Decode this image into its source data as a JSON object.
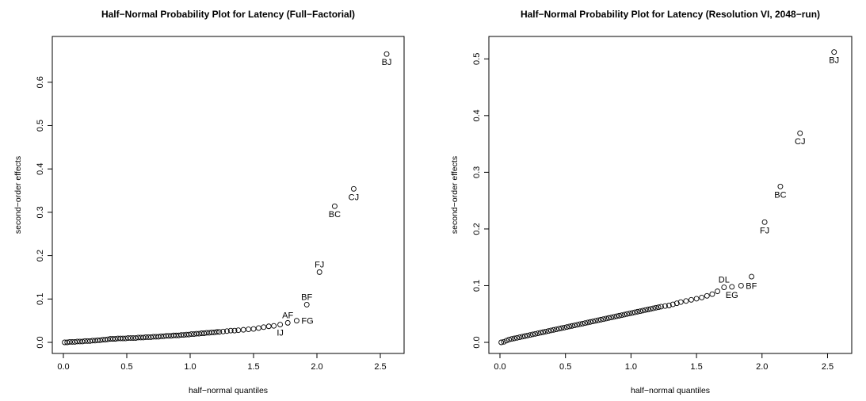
{
  "chart_data": [
    {
      "type": "scatter",
      "title": "Half−Normal Probability Plot for Latency (Full−Factorial)",
      "xlabel": "half−normal quantiles",
      "ylabel": "second−order effects",
      "xlim": [
        0,
        2.6
      ],
      "ylim": [
        0,
        0.68
      ],
      "xticks": [
        0.0,
        0.5,
        1.0,
        1.5,
        2.0,
        2.5
      ],
      "xtick_labels": [
        "0.0",
        "0.5",
        "1.0",
        "1.5",
        "2.0",
        "2.5"
      ],
      "yticks": [
        0.0,
        0.1,
        0.2,
        0.3,
        0.4,
        0.5,
        0.6
      ],
      "ytick_labels": [
        "0.0",
        "0.1",
        "0.2",
        "0.3",
        "0.4",
        "0.5",
        "0.6"
      ],
      "grid": false,
      "series": [
        {
          "points": [
            [
              0.01,
              0.0
            ],
            [
              0.03,
              0.0
            ],
            [
              0.05,
              0.001
            ],
            [
              0.07,
              0.001
            ],
            [
              0.09,
              0.001
            ],
            [
              0.11,
              0.002
            ],
            [
              0.13,
              0.002
            ],
            [
              0.15,
              0.002
            ],
            [
              0.17,
              0.003
            ],
            [
              0.19,
              0.003
            ],
            [
              0.21,
              0.003
            ],
            [
              0.23,
              0.004
            ],
            [
              0.25,
              0.004
            ],
            [
              0.27,
              0.005
            ],
            [
              0.29,
              0.005
            ],
            [
              0.31,
              0.006
            ],
            [
              0.33,
              0.006
            ],
            [
              0.35,
              0.007
            ],
            [
              0.37,
              0.008
            ],
            [
              0.39,
              0.008
            ],
            [
              0.41,
              0.008
            ],
            [
              0.43,
              0.009
            ],
            [
              0.45,
              0.009
            ],
            [
              0.47,
              0.009
            ],
            [
              0.49,
              0.009
            ],
            [
              0.51,
              0.01
            ],
            [
              0.53,
              0.01
            ],
            [
              0.55,
              0.01
            ],
            [
              0.57,
              0.01
            ],
            [
              0.59,
              0.011
            ],
            [
              0.61,
              0.011
            ],
            [
              0.63,
              0.011
            ],
            [
              0.65,
              0.012
            ],
            [
              0.67,
              0.012
            ],
            [
              0.69,
              0.012
            ],
            [
              0.71,
              0.013
            ],
            [
              0.73,
              0.013
            ],
            [
              0.75,
              0.013
            ],
            [
              0.77,
              0.014
            ],
            [
              0.79,
              0.014
            ],
            [
              0.81,
              0.015
            ],
            [
              0.83,
              0.015
            ],
            [
              0.85,
              0.015
            ],
            [
              0.87,
              0.016
            ],
            [
              0.89,
              0.016
            ],
            [
              0.91,
              0.016
            ],
            [
              0.93,
              0.017
            ],
            [
              0.95,
              0.017
            ],
            [
              0.97,
              0.018
            ],
            [
              0.99,
              0.018
            ],
            [
              1.01,
              0.019
            ],
            [
              1.03,
              0.019
            ],
            [
              1.05,
              0.02
            ],
            [
              1.07,
              0.02
            ],
            [
              1.09,
              0.021
            ],
            [
              1.11,
              0.021
            ],
            [
              1.13,
              0.022
            ],
            [
              1.15,
              0.022
            ],
            [
              1.17,
              0.023
            ],
            [
              1.19,
              0.023
            ],
            [
              1.21,
              0.024
            ],
            [
              1.23,
              0.024
            ],
            [
              1.26,
              0.025
            ],
            [
              1.29,
              0.026
            ],
            [
              1.32,
              0.027
            ],
            [
              1.35,
              0.027
            ],
            [
              1.38,
              0.028
            ],
            [
              1.42,
              0.029
            ],
            [
              1.46,
              0.03
            ],
            [
              1.5,
              0.031
            ],
            [
              1.54,
              0.033
            ],
            [
              1.58,
              0.035
            ],
            [
              1.62,
              0.037
            ],
            [
              1.66,
              0.038
            ],
            [
              1.71,
              0.041
            ],
            [
              1.77,
              0.045
            ],
            [
              1.84,
              0.05
            ],
            [
              1.92,
              0.087
            ],
            [
              2.02,
              0.162
            ],
            [
              2.14,
              0.314
            ],
            [
              2.29,
              0.354
            ],
            [
              2.55,
              0.665
            ]
          ],
          "labels": [
            {
              "text": "IJ",
              "x": 1.71,
              "y": 0.041,
              "pos": "below"
            },
            {
              "text": "AF",
              "x": 1.77,
              "y": 0.045,
              "pos": "above"
            },
            {
              "text": "FG",
              "x": 1.84,
              "y": 0.05,
              "pos": "right"
            },
            {
              "text": "BF",
              "x": 1.92,
              "y": 0.087,
              "pos": "above"
            },
            {
              "text": "FJ",
              "x": 2.02,
              "y": 0.162,
              "pos": "above"
            },
            {
              "text": "BC",
              "x": 2.14,
              "y": 0.314,
              "pos": "below"
            },
            {
              "text": "CJ",
              "x": 2.29,
              "y": 0.354,
              "pos": "below"
            },
            {
              "text": "BJ",
              "x": 2.55,
              "y": 0.665,
              "pos": "below"
            }
          ]
        }
      ]
    },
    {
      "type": "scatter",
      "title": "Half−Normal Probability Plot for Latency (Resolution VI, 2048−run)",
      "xlabel": "half−normal quantiles",
      "ylabel": "second−order effects",
      "xlim": [
        0,
        2.6
      ],
      "ylim": [
        0,
        0.52
      ],
      "xticks": [
        0.0,
        0.5,
        1.0,
        1.5,
        2.0,
        2.5
      ],
      "xtick_labels": [
        "0.0",
        "0.5",
        "1.0",
        "1.5",
        "2.0",
        "2.5"
      ],
      "yticks": [
        0.0,
        0.1,
        0.2,
        0.3,
        0.4,
        0.5
      ],
      "ytick_labels": [
        "0.0",
        "0.1",
        "0.2",
        "0.3",
        "0.4",
        "0.5"
      ],
      "grid": false,
      "series": [
        {
          "points": [
            [
              0.01,
              0.0
            ],
            [
              0.03,
              0.001
            ],
            [
              0.05,
              0.003
            ],
            [
              0.07,
              0.005
            ],
            [
              0.09,
              0.006
            ],
            [
              0.11,
              0.007
            ],
            [
              0.13,
              0.008
            ],
            [
              0.15,
              0.009
            ],
            [
              0.17,
              0.01
            ],
            [
              0.19,
              0.011
            ],
            [
              0.21,
              0.012
            ],
            [
              0.23,
              0.013
            ],
            [
              0.25,
              0.014
            ],
            [
              0.27,
              0.015
            ],
            [
              0.29,
              0.016
            ],
            [
              0.31,
              0.017
            ],
            [
              0.33,
              0.018
            ],
            [
              0.35,
              0.019
            ],
            [
              0.37,
              0.02
            ],
            [
              0.39,
              0.021
            ],
            [
              0.41,
              0.022
            ],
            [
              0.43,
              0.023
            ],
            [
              0.45,
              0.024
            ],
            [
              0.47,
              0.025
            ],
            [
              0.49,
              0.026
            ],
            [
              0.51,
              0.027
            ],
            [
              0.53,
              0.028
            ],
            [
              0.55,
              0.029
            ],
            [
              0.57,
              0.03
            ],
            [
              0.59,
              0.031
            ],
            [
              0.61,
              0.032
            ],
            [
              0.63,
              0.033
            ],
            [
              0.65,
              0.034
            ],
            [
              0.67,
              0.035
            ],
            [
              0.69,
              0.036
            ],
            [
              0.71,
              0.037
            ],
            [
              0.73,
              0.038
            ],
            [
              0.75,
              0.039
            ],
            [
              0.77,
              0.04
            ],
            [
              0.79,
              0.041
            ],
            [
              0.81,
              0.042
            ],
            [
              0.83,
              0.043
            ],
            [
              0.85,
              0.044
            ],
            [
              0.87,
              0.045
            ],
            [
              0.89,
              0.046
            ],
            [
              0.91,
              0.047
            ],
            [
              0.93,
              0.048
            ],
            [
              0.95,
              0.049
            ],
            [
              0.97,
              0.05
            ],
            [
              0.99,
              0.051
            ],
            [
              1.01,
              0.052
            ],
            [
              1.03,
              0.053
            ],
            [
              1.05,
              0.054
            ],
            [
              1.07,
              0.055
            ],
            [
              1.09,
              0.056
            ],
            [
              1.11,
              0.057
            ],
            [
              1.13,
              0.058
            ],
            [
              1.15,
              0.059
            ],
            [
              1.17,
              0.06
            ],
            [
              1.19,
              0.061
            ],
            [
              1.21,
              0.062
            ],
            [
              1.23,
              0.063
            ],
            [
              1.26,
              0.064
            ],
            [
              1.29,
              0.065
            ],
            [
              1.32,
              0.067
            ],
            [
              1.35,
              0.069
            ],
            [
              1.38,
              0.071
            ],
            [
              1.42,
              0.073
            ],
            [
              1.46,
              0.075
            ],
            [
              1.5,
              0.077
            ],
            [
              1.54,
              0.079
            ],
            [
              1.58,
              0.082
            ],
            [
              1.62,
              0.085
            ],
            [
              1.66,
              0.09
            ],
            [
              1.71,
              0.097
            ],
            [
              1.77,
              0.098
            ],
            [
              1.84,
              0.1
            ],
            [
              1.92,
              0.116
            ],
            [
              2.02,
              0.212
            ],
            [
              2.14,
              0.275
            ],
            [
              2.29,
              0.369
            ],
            [
              2.55,
              0.512
            ]
          ],
          "labels": [
            {
              "text": "DL",
              "x": 1.71,
              "y": 0.097,
              "pos": "above"
            },
            {
              "text": "EG",
              "x": 1.77,
              "y": 0.098,
              "pos": "below"
            },
            {
              "text": "BF",
              "x": 1.84,
              "y": 0.1,
              "pos": "right"
            },
            {
              "text": "FJ",
              "x": 2.02,
              "y": 0.212,
              "pos": "below"
            },
            {
              "text": "BC",
              "x": 2.14,
              "y": 0.275,
              "pos": "below"
            },
            {
              "text": "CJ",
              "x": 2.29,
              "y": 0.369,
              "pos": "below"
            },
            {
              "text": "BJ",
              "x": 2.55,
              "y": 0.512,
              "pos": "below"
            }
          ]
        }
      ]
    }
  ]
}
